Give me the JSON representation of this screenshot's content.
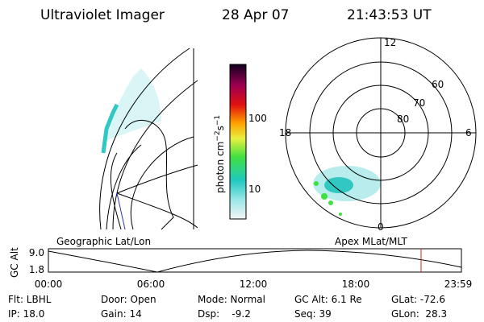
{
  "header": {
    "instrument": "Ultraviolet Imager",
    "date": "28 Apr 07",
    "time": "21:43:53 UT"
  },
  "colorbar": {
    "label": {
      "base": "photon cm",
      "exp1": "−2",
      "mid": "s",
      "exp2": "−1"
    },
    "ticks": [
      "100",
      "10"
    ]
  },
  "polar_plot": {
    "mlt_labels": {
      "top": "12",
      "bottom": "0",
      "left": "18",
      "right": "6"
    },
    "lat_labels": [
      "60",
      "70",
      "80"
    ]
  },
  "orbit_plot": {
    "left_title": "Geographic Lat/Lon",
    "right_title": "Apex MLat/MLT",
    "y_label": "GC Alt",
    "y_ticks": [
      "9.0",
      "1.8"
    ],
    "x_ticks": [
      "00:00",
      "06:00",
      "12:00",
      "18:00",
      "23:59"
    ]
  },
  "info": {
    "rows": [
      [
        "Flt: LBHL",
        "Door: Open",
        "Mode: Normal",
        "GC Alt: 6.1 Re",
        "GLat: -72.6"
      ],
      [
        "IP: 18.0",
        "Gain: 14",
        "Dsp:    -9.2",
        "Seq: 39",
        "GLon:  28.3"
      ]
    ]
  }
}
